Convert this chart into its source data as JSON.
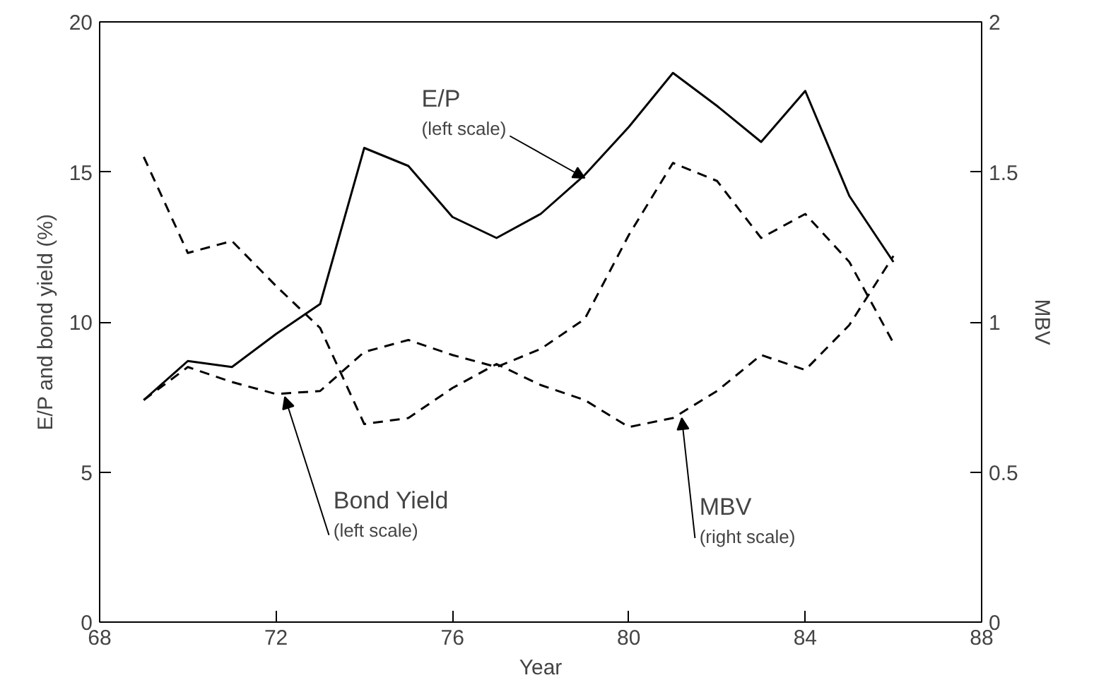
{
  "chart_data": {
    "type": "line",
    "xlabel": "Year",
    "ylabel": "E/P and bond yield (%)",
    "y2label": "MBV",
    "x": [
      69,
      70,
      71,
      72,
      73,
      74,
      75,
      76,
      77,
      78,
      79,
      80,
      81,
      82,
      83,
      84,
      85,
      86
    ],
    "series": [
      {
        "name": "E/P",
        "color": "#000000",
        "line_style": "solid",
        "values": [
          7.4,
          8.7,
          8.5,
          9.6,
          10.6,
          15.8,
          15.2,
          13.5,
          12.8,
          13.6,
          14.9,
          16.5,
          18.3,
          17.2,
          16.0,
          17.7,
          14.2,
          12.0
        ]
      },
      {
        "name": "Bond Yield",
        "color": "#000000",
        "line_style": "dashed",
        "values": [
          7.4,
          8.5,
          8.0,
          7.6,
          7.7,
          9.0,
          9.4,
          8.9,
          8.5,
          9.1,
          10.1,
          12.9,
          15.3,
          14.7,
          12.8,
          13.6,
          12.0,
          9.3
        ]
      },
      {
        "name": "MBV",
        "color": "#000000",
        "line_style": "dashed",
        "axis": "y2",
        "values": [
          1.55,
          1.23,
          1.27,
          1.12,
          0.98,
          0.66,
          0.68,
          0.78,
          0.86,
          0.79,
          0.74,
          0.65,
          0.68,
          0.77,
          0.89,
          0.84,
          0.99,
          1.22
        ]
      }
    ],
    "annotations": [
      {
        "text": "(left scale)",
        "x": 79,
        "y": 14.8
      },
      {
        "text": "(left scale)",
        "x": 72.2,
        "y": 7.5
      },
      {
        "text": "(right scale)",
        "x": 81.2,
        "y": 6.8
      }
    ],
    "xlim": [
      68,
      88
    ],
    "xticks": [
      68,
      72,
      76,
      80,
      84,
      88
    ],
    "ylim": [
      0,
      20
    ],
    "yticks": [
      0,
      5,
      10,
      15,
      20
    ],
    "y2lim": [
      0,
      2
    ],
    "y2ticks": [
      0,
      0.5,
      1,
      1.5,
      2
    ],
    "grid": false,
    "marker": "none"
  }
}
